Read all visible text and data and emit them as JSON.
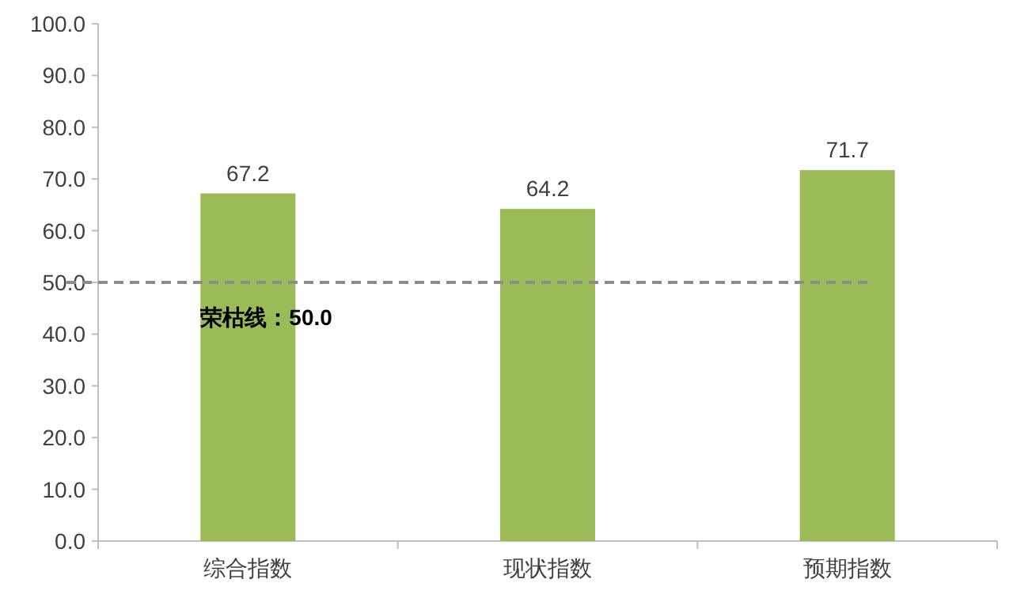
{
  "chart_data": {
    "type": "bar",
    "categories": [
      "综合指数",
      "现状指数",
      "预期指数"
    ],
    "values": [
      67.2,
      64.2,
      71.7
    ],
    "color": "#9bbb59",
    "ylim": [
      0,
      100
    ],
    "yticks": [
      {
        "value": 0,
        "label": "0.0"
      },
      {
        "value": 10,
        "label": "10.0"
      },
      {
        "value": 20,
        "label": "20.0"
      },
      {
        "value": 30,
        "label": "30.0"
      },
      {
        "value": 40,
        "label": "40.0"
      },
      {
        "value": 50,
        "label": "50.0"
      },
      {
        "value": 60,
        "label": "60.0"
      },
      {
        "value": 70,
        "label": "70.0"
      },
      {
        "value": 80,
        "label": "80.0"
      },
      {
        "value": 90,
        "label": "90.0"
      },
      {
        "value": 100,
        "label": "100.0"
      }
    ],
    "data_labels": true,
    "grid": false,
    "ref_lines": [
      {
        "axis": "y",
        "value": 50,
        "label": "荣枯线：50.0",
        "color": "#8c8c8c",
        "line_style": "dashed"
      }
    ]
  }
}
